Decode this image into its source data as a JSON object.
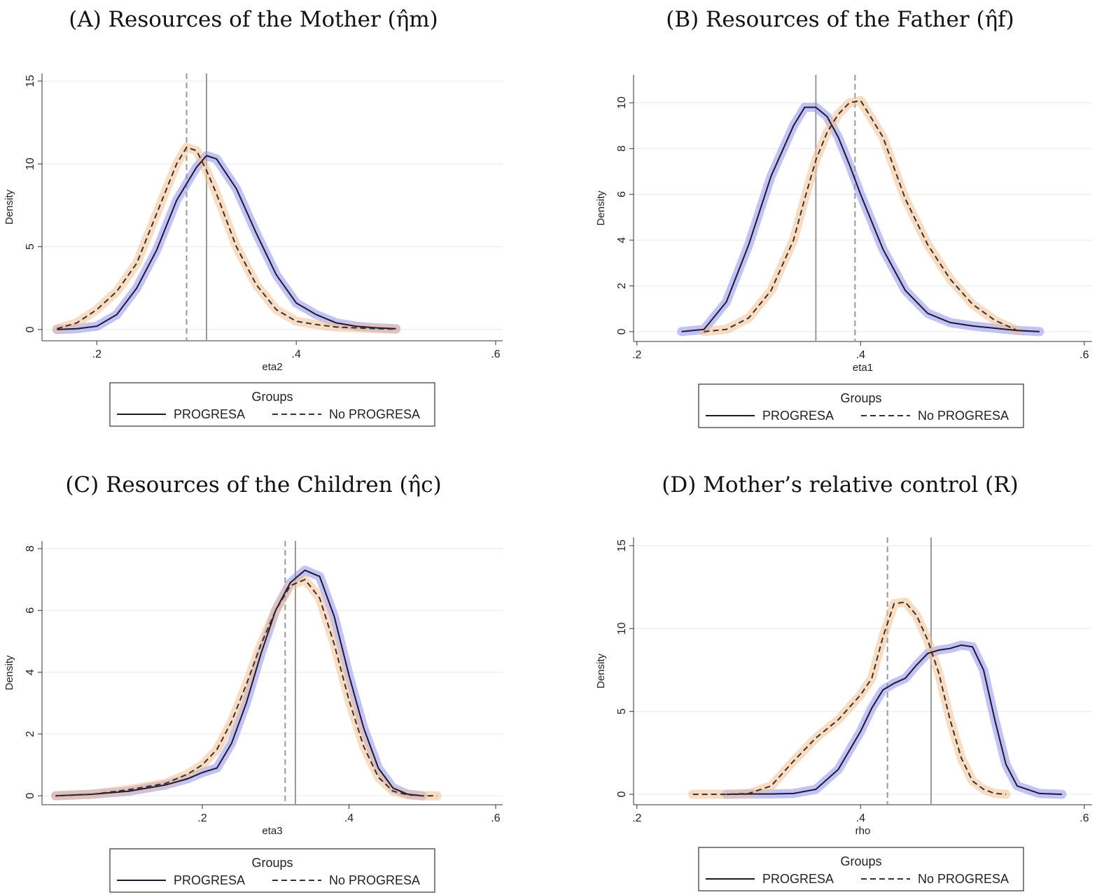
{
  "chart_data": [
    {
      "type": "line",
      "title": "(A) Resources of the Mother (η̂m)",
      "xlabel": "eta2",
      "ylabel": "Density",
      "legend_title": "Groups",
      "grid": true,
      "xlim": [
        0.145,
        0.607
      ],
      "ylim": [
        -0.68,
        15.46
      ],
      "xticks": [
        {
          "value": 0.2,
          "label": ".2"
        },
        {
          "value": 0.4,
          "label": ".4"
        },
        {
          "value": 0.6,
          "label": ".6"
        }
      ],
      "yticks": [
        0,
        5,
        10,
        15
      ],
      "x": [
        0.16,
        0.18,
        0.2,
        0.22,
        0.24,
        0.26,
        0.28,
        0.29,
        0.3,
        0.31,
        0.32,
        0.34,
        0.36,
        0.38,
        0.4,
        0.42,
        0.44,
        0.46,
        0.48,
        0.5
      ],
      "series": [
        {
          "name": "PROGRESA",
          "color": "#1b1b2f",
          "band_color": "#8f8ff0",
          "dash": false,
          "mean": 0.31,
          "values": [
            0,
            0.05,
            0.2,
            0.9,
            2.5,
            4.8,
            7.8,
            8.8,
            9.8,
            10.5,
            10.3,
            8.5,
            5.8,
            3.3,
            1.6,
            0.9,
            0.4,
            0.2,
            0.1,
            0.05
          ]
        },
        {
          "name": "No PROGRESA",
          "color": "#333333",
          "band_color": "#f6c08f",
          "dash": true,
          "mean": 0.29,
          "values": [
            0.05,
            0.4,
            1.2,
            2.3,
            4.0,
            7.0,
            10.0,
            11.0,
            10.8,
            9.6,
            8.2,
            5.0,
            2.7,
            1.2,
            0.5,
            0.3,
            0.15,
            0.1,
            0.05,
            0.02
          ]
        }
      ]
    },
    {
      "type": "line",
      "title": "(B) Resources of the Father (η̂f)",
      "xlabel": "eta1",
      "ylabel": "Density",
      "legend_title": "Groups",
      "grid": true,
      "xlim": [
        0.197,
        0.607
      ],
      "ylim": [
        -0.43,
        11.22
      ],
      "xticks": [
        {
          "value": 0.2,
          "label": ".2"
        },
        {
          "value": 0.4,
          "label": ".4"
        },
        {
          "value": 0.6,
          "label": ".6"
        }
      ],
      "yticks": [
        0,
        2,
        4,
        6,
        8,
        10
      ],
      "x": [
        0.24,
        0.26,
        0.28,
        0.3,
        0.32,
        0.34,
        0.35,
        0.36,
        0.37,
        0.38,
        0.39,
        0.4,
        0.42,
        0.44,
        0.46,
        0.48,
        0.5,
        0.52,
        0.54,
        0.56
      ],
      "series": [
        {
          "name": "PROGRESA",
          "color": "#1b1b2f",
          "band_color": "#8f8ff0",
          "dash": false,
          "mean": 0.36,
          "values": [
            0,
            0.1,
            1.3,
            3.8,
            6.8,
            9.0,
            9.8,
            9.8,
            9.4,
            8.5,
            7.3,
            6.0,
            3.6,
            1.8,
            0.8,
            0.4,
            0.25,
            0.15,
            0.05,
            0
          ]
        },
        {
          "name": "No PROGRESA",
          "color": "#333333",
          "band_color": "#f6c08f",
          "dash": true,
          "mean": 0.395,
          "values": [
            null,
            0,
            0.1,
            0.6,
            1.8,
            4.0,
            5.8,
            7.5,
            8.7,
            9.5,
            10.0,
            10.1,
            8.5,
            5.8,
            3.8,
            2.3,
            1.2,
            0.5,
            0.05,
            null
          ]
        }
      ]
    },
    {
      "type": "line",
      "title": "(C) Resources of the Children (η̂c)",
      "xlabel": "eta3",
      "ylabel": "Density",
      "legend_title": "Groups",
      "grid": true,
      "xlim": [
        -0.0185,
        0.6095
      ],
      "ylim": [
        -0.29,
        8.25
      ],
      "xticks": [
        {
          "value": 0.2,
          "label": ".2"
        },
        {
          "value": 0.4,
          "label": ".4"
        },
        {
          "value": 0.6,
          "label": ".6"
        }
      ],
      "yticks": [
        0,
        2,
        4,
        6,
        8
      ],
      "x": [
        0,
        0.05,
        0.1,
        0.15,
        0.18,
        0.2,
        0.22,
        0.24,
        0.26,
        0.28,
        0.3,
        0.32,
        0.34,
        0.36,
        0.38,
        0.4,
        0.42,
        0.44,
        0.46,
        0.48,
        0.5,
        0.52
      ],
      "series": [
        {
          "name": "PROGRESA",
          "color": "#1b1b2f",
          "band_color": "#8f8ff0",
          "dash": false,
          "mean": 0.327,
          "values": [
            0,
            0.05,
            0.15,
            0.35,
            0.55,
            0.75,
            0.9,
            1.7,
            3.0,
            4.6,
            6.0,
            6.9,
            7.3,
            7.1,
            5.8,
            3.9,
            2.2,
            0.9,
            0.25,
            0.05,
            0,
            null
          ]
        },
        {
          "name": "No PROGRESA",
          "color": "#333333",
          "band_color": "#f6c08f",
          "dash": true,
          "mean": 0.313,
          "values": [
            0,
            0.05,
            0.2,
            0.4,
            0.7,
            1.0,
            1.5,
            2.4,
            3.6,
            4.9,
            6.0,
            6.8,
            7.0,
            6.4,
            4.9,
            3.1,
            1.6,
            0.6,
            0.15,
            0.03,
            0,
            0
          ]
        }
      ]
    },
    {
      "type": "line",
      "title": "(D) Mother’s relative control (R)",
      "xlabel": "rho",
      "ylabel": "Density",
      "legend_title": "Groups",
      "grid": true,
      "xlim": [
        0.197,
        0.607
      ],
      "ylim": [
        -0.63,
        15.5
      ],
      "xticks": [
        {
          "value": 0.2,
          "label": ".2"
        },
        {
          "value": 0.4,
          "label": ".4"
        },
        {
          "value": 0.6,
          "label": ".6"
        }
      ],
      "yticks": [
        0,
        5,
        10,
        15
      ],
      "x": [
        0.25,
        0.28,
        0.3,
        0.32,
        0.34,
        0.36,
        0.38,
        0.4,
        0.41,
        0.42,
        0.43,
        0.44,
        0.45,
        0.46,
        0.47,
        0.48,
        0.49,
        0.5,
        0.51,
        0.52,
        0.53,
        0.54,
        0.56,
        0.58
      ],
      "series": [
        {
          "name": "PROGRESA",
          "color": "#1b1b2f",
          "band_color": "#8f8ff0",
          "dash": false,
          "mean": 0.463,
          "values": [
            null,
            0,
            0.02,
            0.02,
            0.05,
            0.3,
            1.5,
            3.8,
            5.2,
            6.3,
            6.7,
            7.0,
            7.8,
            8.5,
            8.7,
            8.8,
            9.0,
            8.9,
            7.5,
            4.5,
            1.8,
            0.5,
            0.05,
            0
          ]
        },
        {
          "name": "No PROGRESA",
          "color": "#333333",
          "band_color": "#f6c08f",
          "dash": true,
          "mean": 0.424,
          "values": [
            0,
            0,
            0.05,
            0.5,
            2.0,
            3.4,
            4.5,
            6.0,
            7.0,
            9.5,
            11.5,
            11.6,
            10.8,
            9.3,
            7.3,
            4.5,
            2.2,
            0.8,
            0.3,
            0.05,
            0,
            null,
            null,
            null
          ]
        }
      ]
    }
  ]
}
